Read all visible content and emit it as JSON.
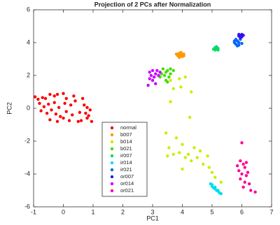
{
  "chart_data": {
    "type": "scatter",
    "title": "Projection of 2 PCs after Normalization",
    "xlabel": "PC1",
    "ylabel": "PC2",
    "xlim": [
      -1,
      7
    ],
    "xticks": [
      -1,
      0,
      1,
      2,
      3,
      4,
      5,
      6,
      7
    ],
    "ylim": [
      -6,
      6
    ],
    "yticks": [
      -6,
      -4,
      -2,
      0,
      2,
      4,
      6
    ],
    "grid": false,
    "legend": "south-west",
    "series": [
      {
        "name": "normal",
        "color": "#ff0000",
        "x": [
          -0.95,
          -0.85,
          -0.7,
          -0.6,
          -0.45,
          -0.3,
          -0.2,
          0,
          0.1,
          0.35,
          -0.8,
          -0.65,
          -0.5,
          -0.3,
          -0.15,
          0.05,
          0.25,
          0.4,
          -0.75,
          -0.55,
          -0.4,
          -0.25,
          -0.1,
          0.1,
          0.3,
          -0.45,
          -0.2,
          0,
          0.2,
          0.65,
          0.7,
          0.8,
          0.9,
          0.75,
          0.55,
          0.6,
          0.8,
          0.95,
          0.85,
          0.5
        ],
        "y": [
          0.7,
          0.55,
          0.65,
          0.6,
          0.85,
          0.75,
          0.85,
          0.9,
          0.6,
          0.75,
          0.3,
          0.1,
          0.25,
          0.35,
          0.05,
          0.3,
          0.2,
          0.45,
          -0.15,
          -0.3,
          -0.1,
          -0.35,
          -0.5,
          -0.2,
          -0.4,
          -0.7,
          -0.8,
          -0.6,
          -0.75,
          0.6,
          0.2,
          0.05,
          -0.1,
          -0.3,
          -0.25,
          -0.75,
          -0.6,
          -0.8,
          -0.45,
          -0.8
        ]
      },
      {
        "name": "b007",
        "color": "#ff9900",
        "x": [
          3.8,
          3.85,
          3.9,
          3.95,
          4.0,
          4.05,
          3.9,
          3.95,
          4.0,
          3.85,
          4.05,
          3.9
        ],
        "y": [
          3.3,
          3.2,
          3.35,
          3.25,
          3.15,
          3.3,
          3.1,
          3.4,
          3.3,
          3.3,
          3.2,
          3.25
        ]
      },
      {
        "name": "b014",
        "color": "#ccee00",
        "x": [
          3.6,
          3.9,
          4.1,
          3.7,
          3.95,
          4.3,
          3.6,
          4.25,
          3.45,
          3.8,
          3.55,
          3.9,
          4.0,
          4.2,
          4.4,
          4.6,
          4.3,
          4.5,
          4.7,
          4.85,
          4.9,
          5.0,
          5.1,
          5.3,
          3.5,
          4.1,
          4.0,
          3.7
        ],
        "y": [
          1.7,
          1.8,
          1.9,
          1.2,
          1.3,
          1.0,
          0.4,
          -0.55,
          -1.5,
          -1.8,
          -2.4,
          -2.7,
          -2.2,
          -2.8,
          -2.4,
          -2.6,
          -3.2,
          -3.0,
          -3.4,
          -2.9,
          -3.6,
          -3.9,
          -4.2,
          -4.5,
          -2.9,
          -3.0,
          -3.7,
          -2.8
        ]
      },
      {
        "name": "b021",
        "color": "#44dd00",
        "x": [
          3.35,
          3.45,
          3.5,
          3.4,
          3.55,
          3.6,
          3.3,
          3.45,
          3.7,
          3.5,
          3.25,
          3.6
        ],
        "y": [
          2.4,
          2.2,
          2.3,
          2.0,
          1.9,
          2.1,
          2.1,
          1.7,
          2.3,
          1.6,
          1.9,
          2.4
        ]
      },
      {
        "name": "ir007",
        "color": "#00dd66",
        "x": [
          5.1,
          5.15,
          5.2,
          5.1,
          5.15,
          5.2,
          5.05
        ],
        "y": [
          3.7,
          3.6,
          3.55,
          3.55,
          3.75,
          3.65,
          3.6
        ]
      },
      {
        "name": "ir014",
        "color": "#00ddee",
        "x": [
          4.95,
          5.0,
          5.05,
          5.1,
          5.15,
          5.2,
          5.25,
          5.3,
          5.0,
          5.1,
          5.2
        ],
        "y": [
          -4.6,
          -4.75,
          -4.85,
          -4.9,
          -5.0,
          -5.05,
          -5.15,
          -5.2,
          -4.65,
          -4.8,
          -5.0
        ]
      },
      {
        "name": "ir021",
        "color": "#0066ff",
        "x": [
          5.75,
          5.8,
          5.85,
          5.9,
          5.95,
          5.8,
          5.75,
          5.9,
          6.0,
          5.85
        ],
        "y": [
          4.0,
          3.9,
          4.1,
          3.85,
          4.2,
          4.2,
          4.1,
          4.0,
          3.95,
          3.8
        ]
      },
      {
        "name": "or007",
        "color": "#3311ee",
        "x": [
          5.95,
          6.0,
          5.9,
          6.05,
          5.95,
          6.0,
          5.9
        ],
        "y": [
          4.45,
          4.5,
          4.4,
          4.45,
          4.3,
          4.35,
          4.5
        ]
      },
      {
        "name": "or014",
        "color": "#cc00ff",
        "x": [
          2.9,
          2.95,
          3.0,
          3.05,
          3.1,
          3.15,
          3.2,
          2.9,
          3.0,
          3.25,
          2.85,
          3.1
        ],
        "y": [
          2.2,
          2.0,
          2.3,
          1.9,
          2.1,
          2.3,
          2.0,
          1.8,
          1.7,
          2.2,
          1.4,
          1.5
        ]
      },
      {
        "name": "or021",
        "color": "#ff0099",
        "x": [
          6.0,
          5.95,
          6.05,
          6.1,
          5.9,
          6.0,
          6.15,
          6.2,
          5.95,
          6.1,
          6.25,
          6.05,
          6.3,
          6.45,
          6.15,
          5.85
        ],
        "y": [
          -2.1,
          -3.2,
          -3.4,
          -3.6,
          -3.8,
          -4.0,
          -4.1,
          -3.9,
          -4.3,
          -4.5,
          -4.6,
          -4.8,
          -5.0,
          -5.1,
          -3.3,
          -3.5
        ]
      }
    ]
  }
}
